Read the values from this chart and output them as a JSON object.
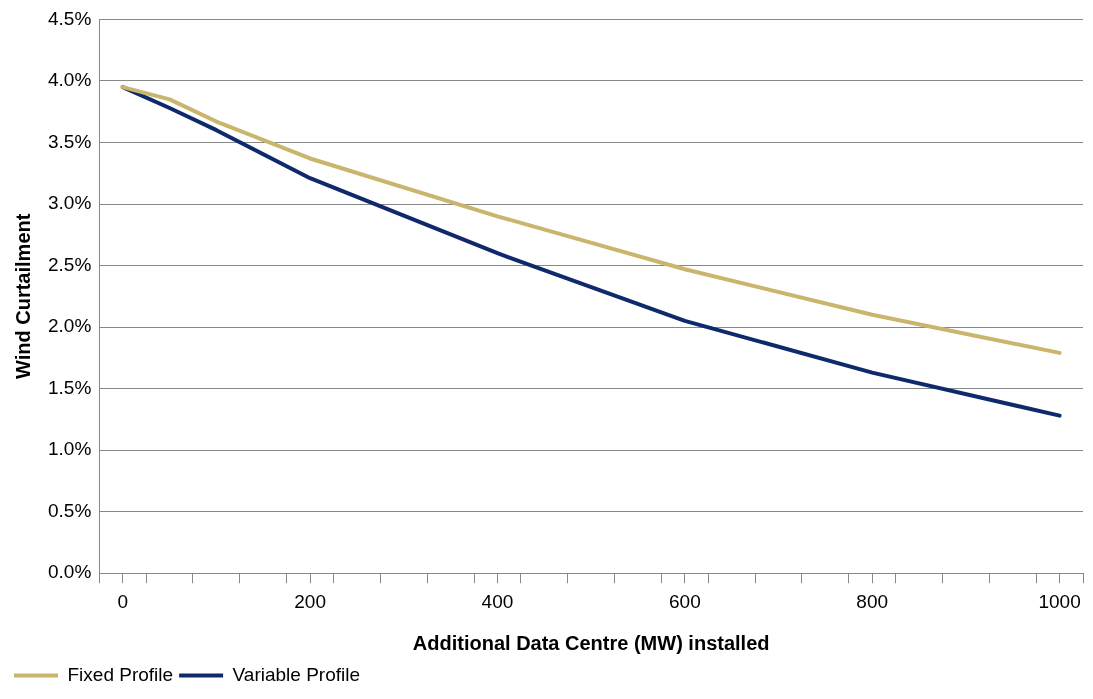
{
  "chart_data": {
    "type": "line",
    "xlabel": "Additional Data Centre (MW) installed",
    "ylabel": "Wind Curtailment",
    "x": [
      0,
      50,
      100,
      200,
      400,
      600,
      800,
      1000
    ],
    "series": [
      {
        "name": "Fixed Profile",
        "color": "#c9b56b",
        "values": [
          3.95,
          3.85,
          3.67,
          3.37,
          2.9,
          2.47,
          2.1,
          1.79
        ]
      },
      {
        "name": "Variable Profile",
        "color": "#0e2a6c",
        "values": [
          3.95,
          3.78,
          3.6,
          3.21,
          2.6,
          2.05,
          1.63,
          1.28
        ]
      }
    ],
    "xlim": [
      -25,
      1025
    ],
    "xticks": [
      {
        "value": -25,
        "label": null
      },
      0,
      {
        "value": 25,
        "label": null
      },
      {
        "value": 75,
        "label": null
      },
      {
        "value": 125,
        "label": null
      },
      {
        "value": 175,
        "label": null
      },
      200,
      {
        "value": 225,
        "label": null
      },
      {
        "value": 275,
        "label": null
      },
      {
        "value": 325,
        "label": null
      },
      {
        "value": 375,
        "label": null
      },
      400,
      {
        "value": 425,
        "label": null
      },
      {
        "value": 475,
        "label": null
      },
      {
        "value": 525,
        "label": null
      },
      {
        "value": 575,
        "label": null
      },
      600,
      {
        "value": 625,
        "label": null
      },
      {
        "value": 675,
        "label": null
      },
      {
        "value": 725,
        "label": null
      },
      {
        "value": 775,
        "label": null
      },
      800,
      {
        "value": 825,
        "label": null
      },
      {
        "value": 875,
        "label": null
      },
      {
        "value": 925,
        "label": null
      },
      {
        "value": 975,
        "label": null
      },
      1000,
      {
        "value": 1025,
        "label": null
      }
    ],
    "ylim": [
      0,
      4.5
    ],
    "yticks": [
      {
        "value": 0,
        "label": "0.0%"
      },
      {
        "value": 0.5,
        "label": "0.5%"
      },
      {
        "value": 1,
        "label": "1.0%"
      },
      {
        "value": 1.5,
        "label": "1.5%"
      },
      {
        "value": 2,
        "label": "2.0%"
      },
      {
        "value": 2.5,
        "label": "2.5%"
      },
      {
        "value": 3,
        "label": "3.0%"
      },
      {
        "value": 3.5,
        "label": "3.5%"
      },
      {
        "value": 4,
        "label": "4.0%"
      },
      {
        "value": 4.5,
        "label": "4.5%"
      }
    ],
    "grid": "y",
    "legend": "bottom left",
    "marker": "none",
    "line_style": "solid"
  }
}
